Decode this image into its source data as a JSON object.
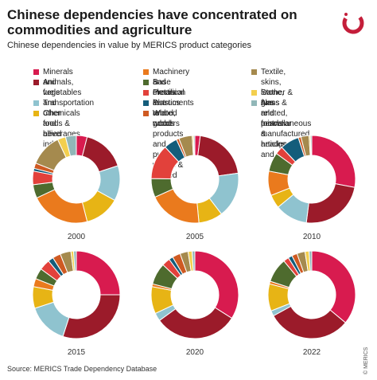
{
  "header": {
    "title": "Chinese dependencies have concentrated on commodities and agriculture",
    "subtitle": "Chinese dependencies in value by MERICS product categories"
  },
  "footer": {
    "source": "Source: MERICS Trade Dependency Database",
    "credit": "© MERICS"
  },
  "colors": {
    "accent": "#c41e3a",
    "Minerals and fuels": "#d81b4f",
    "Animals, vegetables and other foods & beverages": "#9b1b2a",
    "Transportation": "#8fc3cf",
    "Chemicals and allied industries": "#e7b415",
    "Machinery and electrical": "#ea7a1d",
    "Base metals & related goods": "#4e6b2e",
    "Precision instruments": "#e2413b",
    "Plastics and rubbers": "#145d7b",
    "Wood, wood products and pulp of woods & related": "#cf5a22",
    "Textile, skins, leather & furs and footwear & headgear": "#a58a4e",
    "Stone, glass and pearls": "#f3cf4e",
    "Arms & related, miscellaneous manufactured articles and arts": "#91b7b8"
  },
  "chart_data": {
    "type": "pie",
    "donut": true,
    "title": "Chinese dependencies have concentrated on commodities and agriculture",
    "subtitle": "Chinese dependencies in value by MERICS product categories",
    "legend_position": "top",
    "categories": [
      "Minerals and fuels",
      "Animals, vegetables and other foods & beverages",
      "Transportation",
      "Chemicals and allied industries",
      "Machinery and electrical",
      "Base metals & related goods",
      "Precision instruments",
      "Plastics and rubbers",
      "Wood, wood products and pulp of woods & related",
      "Textile, skins, leather & furs and footwear & headgear",
      "Stone, glass and pearls",
      "Arms & related, miscellaneous manufactured articles and arts"
    ],
    "legend_labels": [
      "Minerals and fuels",
      "Animals, vegetables and\nother foods & beverages",
      "Transportation",
      "Chemicals and\nallied industries",
      "Machinery and electrical",
      "Base metals & related goods",
      "Precision instruments",
      "Plastics and rubbers",
      "Wood, wood products and\npulp of woods & related",
      "Textile, skins, leather & furs\nand footwear & headgear",
      "Stone, glass and pearls",
      "Arms & related, miscellaneous\nmanufactured articles\nand arts"
    ],
    "series": [
      {
        "name": "2000",
        "values": [
          4,
          16,
          13,
          13,
          22,
          5,
          5,
          1,
          2,
          12,
          3,
          4
        ]
      },
      {
        "name": "2005",
        "values": [
          2,
          21,
          17,
          9,
          20,
          7,
          13,
          5,
          1,
          5,
          0.5,
          0.5
        ]
      },
      {
        "name": "2010",
        "values": [
          28,
          24,
          12,
          5,
          9,
          7,
          3,
          7,
          1,
          3,
          0.5,
          0.5
        ]
      },
      {
        "name": "2015",
        "values": [
          25,
          30,
          15,
          8,
          3,
          4,
          4,
          2,
          3,
          4,
          1,
          1
        ]
      },
      {
        "name": "2020",
        "values": [
          34,
          31,
          3,
          10,
          1,
          8,
          3,
          1.5,
          3,
          3,
          1.5,
          1
        ]
      },
      {
        "name": "2022",
        "values": [
          36,
          31,
          2,
          10,
          1,
          9,
          2,
          1.5,
          2,
          3,
          1.5,
          1
        ]
      }
    ]
  }
}
